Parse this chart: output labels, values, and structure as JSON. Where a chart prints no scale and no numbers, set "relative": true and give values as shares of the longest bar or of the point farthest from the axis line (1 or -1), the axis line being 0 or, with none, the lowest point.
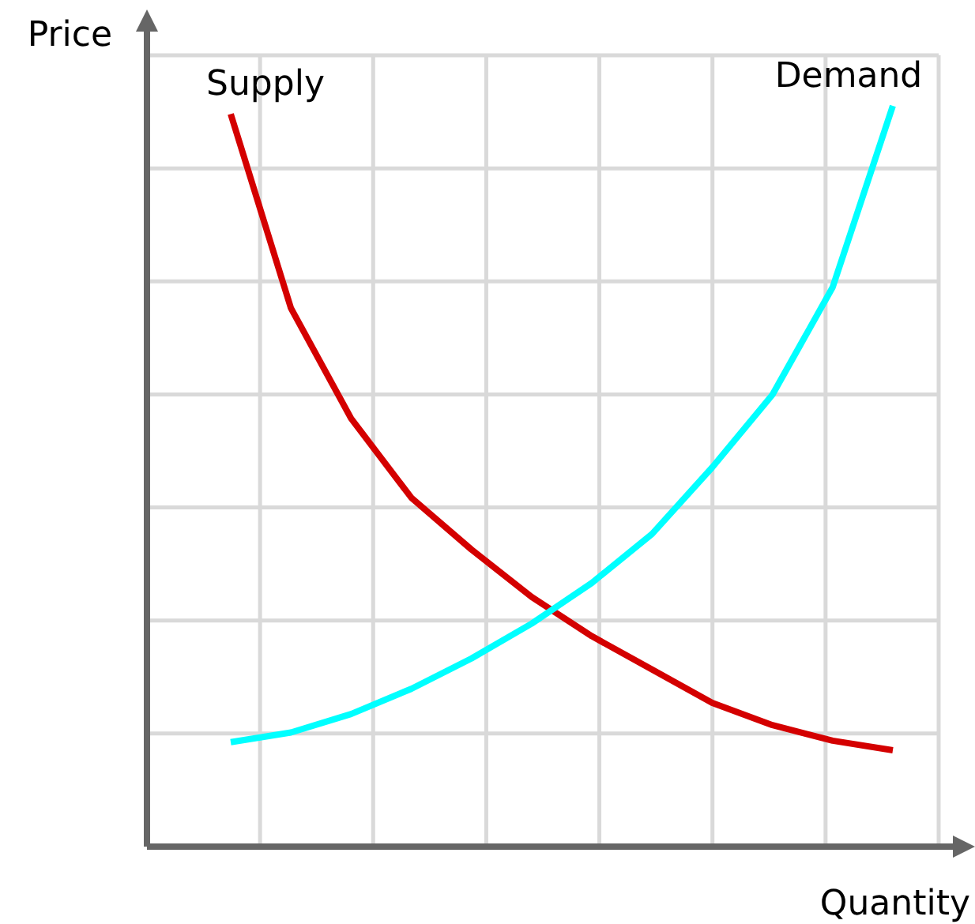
{
  "chart_data": {
    "type": "line",
    "relative": true,
    "xlabel": "Quantity",
    "ylabel": "Price",
    "categories": [
      null,
      null,
      null,
      null,
      null,
      null,
      null,
      null,
      null,
      null,
      null,
      null
    ],
    "grid": true,
    "legend": false,
    "marker": "none",
    "line_style": "solid",
    "series": [
      {
        "name": "Supply",
        "color": "#d40000",
        "values": [
          0.989,
          0.727,
          0.578,
          0.471,
          0.401,
          0.337,
          0.284,
          0.239,
          0.194,
          0.164,
          0.143,
          0.13
        ]
      },
      {
        "name": "Demand",
        "color": "#00ffff",
        "values": [
          0.141,
          0.154,
          0.179,
          0.213,
          0.254,
          0.301,
          0.356,
          0.422,
          0.512,
          0.61,
          0.755,
          1.0
        ]
      }
    ]
  }
}
